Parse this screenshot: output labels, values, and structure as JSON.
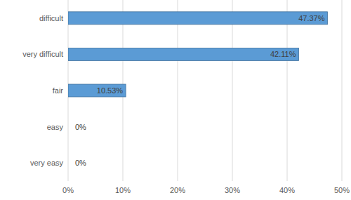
{
  "chart_data": {
    "type": "bar",
    "orientation": "horizontal",
    "categories": [
      "difficult",
      "very difficult",
      "fair",
      "easy",
      "very easy"
    ],
    "values": [
      47.37,
      42.11,
      10.53,
      0,
      0
    ],
    "value_labels": [
      "47.37%",
      "42.11%",
      "10.53%",
      "0%",
      "0%"
    ],
    "color": "#5b9bd5",
    "xlim": [
      0,
      50
    ],
    "xticks": [
      {
        "value": 0,
        "label": "0%"
      },
      {
        "value": 10,
        "label": "10%"
      },
      {
        "value": 20,
        "label": "20%"
      },
      {
        "value": 30,
        "label": "30%"
      },
      {
        "value": 40,
        "label": "40%"
      },
      {
        "value": 50,
        "label": "50%"
      }
    ],
    "grid": true,
    "data_labels": true
  }
}
